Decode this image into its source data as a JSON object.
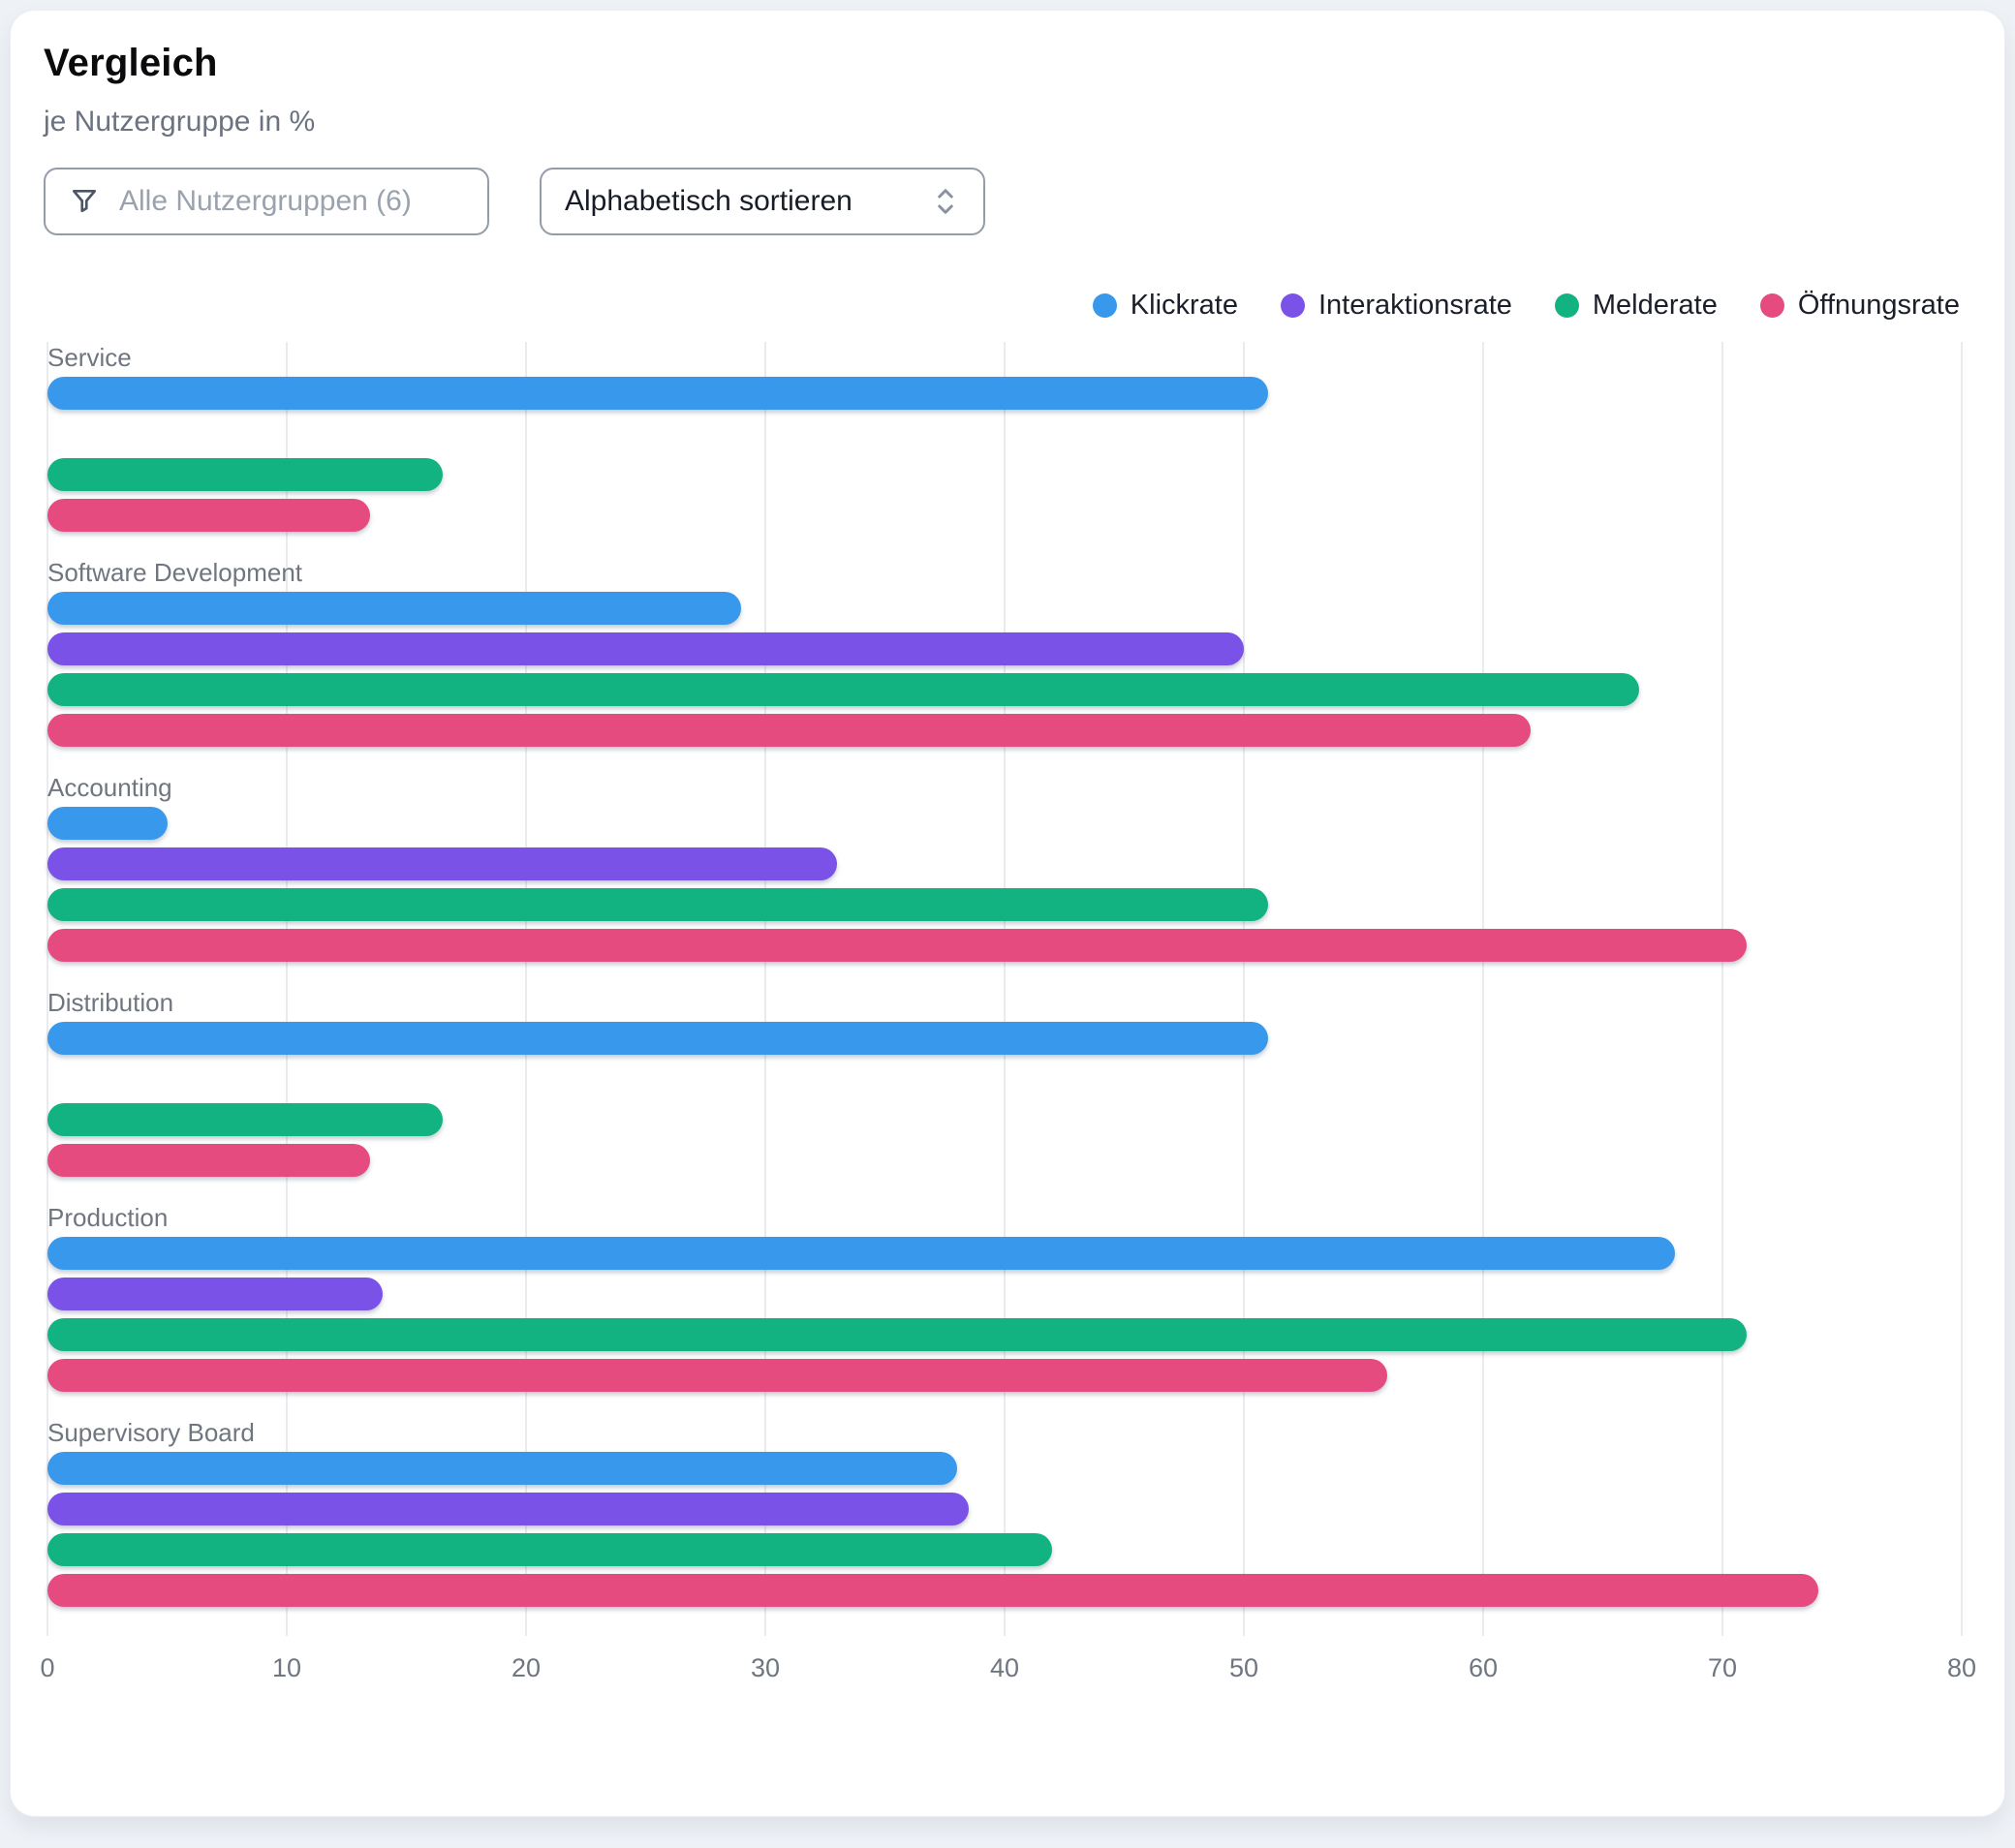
{
  "header": {
    "title": "Vergleich",
    "subtitle": "je Nutzergruppe in %"
  },
  "controls": {
    "filter_placeholder": "Alle Nutzergruppen (6)",
    "filter_icon": "funnel-icon",
    "sort_label": "Alphabetisch sortieren",
    "sort_icon": "chevron-up-down-icon"
  },
  "colors": {
    "klickrate": "#3898EC",
    "interaktionsrate": "#7A52E8",
    "melderate": "#12B381",
    "oeffnungsrate": "#E64B80",
    "card_background": "#FFFFFF",
    "page_background": "#EEF1F6",
    "gridline": "#E9EBEF",
    "muted_text": "#6F7680"
  },
  "chart_data": {
    "type": "bar",
    "orientation": "horizontal",
    "grouped": true,
    "title": "Vergleich",
    "subtitle": "je Nutzergruppe in %",
    "unit": "%",
    "categories": [
      "Service",
      "Software Development",
      "Accounting",
      "Distribution",
      "Production",
      "Supervisory Board"
    ],
    "series": [
      {
        "name": "Klickrate",
        "color": "#3898EC",
        "values": [
          51,
          29,
          5,
          51,
          68,
          38
        ]
      },
      {
        "name": "Interaktionsrate",
        "color": "#7A52E8",
        "values": [
          null,
          50,
          33,
          null,
          14,
          38.5
        ]
      },
      {
        "name": "Melderate",
        "color": "#12B381",
        "values": [
          16.5,
          66.5,
          51,
          16.5,
          71,
          42
        ]
      },
      {
        "name": "Öffnungsrate",
        "color": "#E64B80",
        "values": [
          13.5,
          62,
          71,
          13.5,
          56,
          74
        ]
      }
    ],
    "xlim": [
      0,
      80
    ],
    "xticks": [
      0,
      10,
      20,
      30,
      40,
      50,
      60,
      70,
      80
    ],
    "grid": true,
    "legend_position": "top-right"
  }
}
